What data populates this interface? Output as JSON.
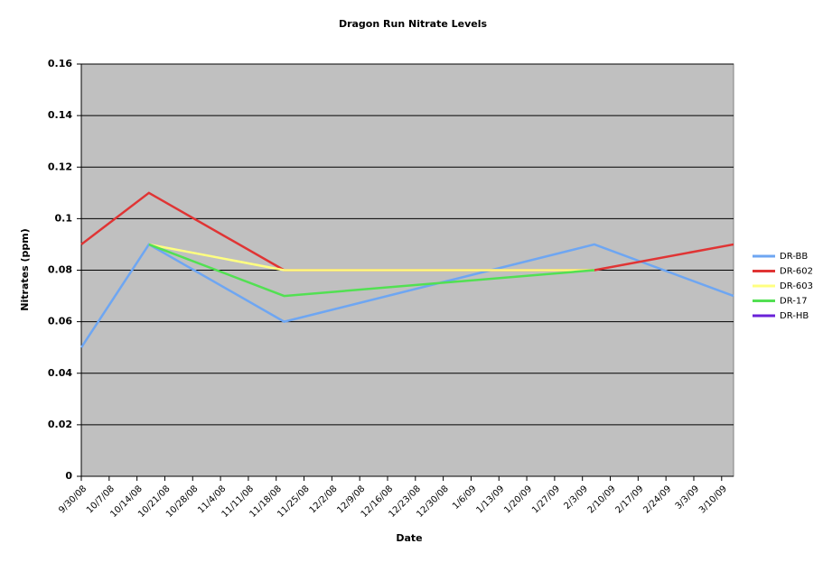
{
  "chart_data": {
    "type": "line",
    "title": "Dragon Run Nitrate Levels",
    "x_label": "Date",
    "y_label": "Nitrates (ppm)",
    "x": [
      "9/30/08",
      "10/17/08",
      "11/20/08",
      "2/6/09",
      "3/13/09"
    ],
    "xlim": [
      "9/30/08",
      "3/13/09"
    ],
    "xticks": [
      "9/30/08",
      "10/7/08",
      "10/14/08",
      "10/21/08",
      "10/28/08",
      "11/4/08",
      "11/11/08",
      "11/18/08",
      "11/25/08",
      "12/2/08",
      "12/9/08",
      "12/16/08",
      "12/23/08",
      "12/30/08",
      "1/6/09",
      "1/13/09",
      "1/20/09",
      "1/27/09",
      "2/3/09",
      "2/10/09",
      "2/17/09",
      "2/24/09",
      "3/3/09",
      "3/10/09"
    ],
    "ylim": [
      0,
      0.16
    ],
    "yticks": [
      0,
      0.02,
      0.04,
      0.06,
      0.08,
      0.1,
      0.12,
      0.14,
      0.16
    ],
    "grid": true,
    "legend": "right",
    "background": "#c0c0c0",
    "series": [
      {
        "name": "DR-BB",
        "color": "#6ea6f2",
        "values": [
          0.05,
          0.09,
          0.06,
          0.09,
          0.07
        ]
      },
      {
        "name": "DR-602",
        "color": "#e03434",
        "values": [
          0.09,
          0.11,
          0.08,
          0.08,
          0.09
        ]
      },
      {
        "name": "DR-603",
        "color": "#ffff80",
        "values": [
          null,
          0.09,
          0.08,
          0.08,
          null
        ]
      },
      {
        "name": "DR-17",
        "color": "#52e052",
        "values": [
          null,
          0.09,
          0.07,
          0.08,
          null
        ]
      },
      {
        "name": "DR-HB",
        "color": "#6a22d8",
        "values": [
          null,
          null,
          null,
          null,
          null
        ]
      }
    ]
  }
}
